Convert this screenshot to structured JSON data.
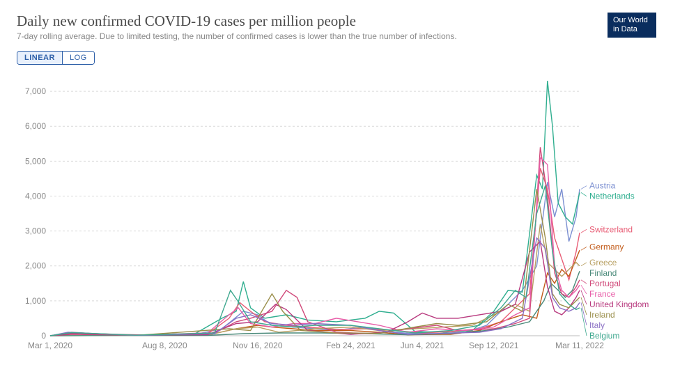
{
  "title": "Daily new confirmed COVID-19 cases per million people",
  "subtitle": "7-day rolling average. Due to limited testing, the number of confirmed cases is lower than the true number of infections.",
  "logo_line1": "Our World",
  "logo_line2": "in Data",
  "scale": {
    "linear": "LINEAR",
    "log": "LOG",
    "active": "linear"
  },
  "chart": {
    "type": "line",
    "background_color": "#ffffff",
    "grid_color": "#d9d9d9",
    "axis_label_color": "#888888",
    "xlim": [
      0,
      740
    ],
    "ylim": [
      0,
      7500
    ],
    "yticks": [
      0,
      1000,
      2000,
      3000,
      4000,
      5000,
      6000,
      7000
    ],
    "ytick_labels": [
      "0",
      "1,000",
      "2,000",
      "3,000",
      "4,000",
      "5,000",
      "6,000",
      "7,000"
    ],
    "xticks": [
      0,
      160,
      290,
      420,
      520,
      620,
      740
    ],
    "xtick_labels": [
      "Mar 1, 2020",
      "Aug 8, 2020",
      "Nov 16, 2020",
      "Feb 24, 2021",
      "Jun 4, 2021",
      "Sep 12, 2021",
      "Mar 11, 2022"
    ],
    "line_width": 1.4,
    "font_family": "Arial, sans-serif",
    "label_fontsize": 12,
    "series": [
      {
        "name": "Austria",
        "color": "#7b8fd1",
        "end": 4200,
        "points": [
          [
            0,
            0
          ],
          [
            30,
            60
          ],
          [
            60,
            40
          ],
          [
            120,
            20
          ],
          [
            200,
            30
          ],
          [
            240,
            200
          ],
          [
            270,
            700
          ],
          [
            290,
            600
          ],
          [
            310,
            300
          ],
          [
            340,
            250
          ],
          [
            370,
            200
          ],
          [
            400,
            160
          ],
          [
            440,
            250
          ],
          [
            470,
            120
          ],
          [
            500,
            70
          ],
          [
            540,
            60
          ],
          [
            580,
            100
          ],
          [
            610,
            300
          ],
          [
            640,
            900
          ],
          [
            660,
            1300
          ],
          [
            680,
            2000
          ],
          [
            695,
            4400
          ],
          [
            705,
            3400
          ],
          [
            715,
            4200
          ],
          [
            725,
            2700
          ],
          [
            735,
            3400
          ],
          [
            740,
            4200
          ]
        ]
      },
      {
        "name": "Netherlands",
        "color": "#2fae8f",
        "end": 4100,
        "points": [
          [
            0,
            0
          ],
          [
            30,
            50
          ],
          [
            120,
            10
          ],
          [
            200,
            30
          ],
          [
            240,
            500
          ],
          [
            260,
            700
          ],
          [
            270,
            1550
          ],
          [
            280,
            800
          ],
          [
            300,
            500
          ],
          [
            330,
            600
          ],
          [
            360,
            450
          ],
          [
            400,
            400
          ],
          [
            440,
            500
          ],
          [
            460,
            700
          ],
          [
            480,
            650
          ],
          [
            510,
            120
          ],
          [
            550,
            100
          ],
          [
            590,
            150
          ],
          [
            620,
            700
          ],
          [
            640,
            1300
          ],
          [
            660,
            1250
          ],
          [
            680,
            4600
          ],
          [
            688,
            4200
          ],
          [
            695,
            7300
          ],
          [
            702,
            6000
          ],
          [
            710,
            3800
          ],
          [
            720,
            3400
          ],
          [
            730,
            3200
          ],
          [
            740,
            4100
          ]
        ]
      },
      {
        "name": "Switzerland",
        "color": "#e85d75",
        "end": 2950,
        "points": [
          [
            0,
            0
          ],
          [
            30,
            100
          ],
          [
            60,
            60
          ],
          [
            150,
            10
          ],
          [
            220,
            50
          ],
          [
            250,
            500
          ],
          [
            265,
            950
          ],
          [
            280,
            700
          ],
          [
            300,
            400
          ],
          [
            330,
            300
          ],
          [
            360,
            250
          ],
          [
            400,
            180
          ],
          [
            440,
            200
          ],
          [
            480,
            150
          ],
          [
            520,
            80
          ],
          [
            560,
            120
          ],
          [
            600,
            200
          ],
          [
            630,
            400
          ],
          [
            650,
            800
          ],
          [
            670,
            1200
          ],
          [
            685,
            4800
          ],
          [
            695,
            4200
          ],
          [
            705,
            2800
          ],
          [
            715,
            2200
          ],
          [
            725,
            1600
          ],
          [
            735,
            2400
          ],
          [
            740,
            2950
          ]
        ]
      },
      {
        "name": "Germany",
        "color": "#c25b1a",
        "end": 2450,
        "points": [
          [
            0,
            0
          ],
          [
            30,
            50
          ],
          [
            120,
            10
          ],
          [
            220,
            20
          ],
          [
            260,
            200
          ],
          [
            290,
            300
          ],
          [
            310,
            250
          ],
          [
            340,
            200
          ],
          [
            370,
            150
          ],
          [
            420,
            150
          ],
          [
            460,
            100
          ],
          [
            500,
            30
          ],
          [
            560,
            40
          ],
          [
            600,
            150
          ],
          [
            630,
            400
          ],
          [
            660,
            600
          ],
          [
            680,
            500
          ],
          [
            695,
            1800
          ],
          [
            705,
            1500
          ],
          [
            715,
            1900
          ],
          [
            725,
            1700
          ],
          [
            735,
            2200
          ],
          [
            740,
            2450
          ]
        ]
      },
      {
        "name": "Greece",
        "color": "#b8a062",
        "end": 2000,
        "points": [
          [
            0,
            0
          ],
          [
            100,
            5
          ],
          [
            220,
            15
          ],
          [
            260,
            200
          ],
          [
            290,
            250
          ],
          [
            320,
            100
          ],
          [
            370,
            200
          ],
          [
            420,
            250
          ],
          [
            460,
            150
          ],
          [
            510,
            200
          ],
          [
            550,
            250
          ],
          [
            590,
            300
          ],
          [
            620,
            600
          ],
          [
            650,
            900
          ],
          [
            670,
            700
          ],
          [
            685,
            3200
          ],
          [
            695,
            2100
          ],
          [
            705,
            1900
          ],
          [
            715,
            1700
          ],
          [
            725,
            1900
          ],
          [
            735,
            2100
          ],
          [
            740,
            2000
          ]
        ]
      },
      {
        "name": "Finland",
        "color": "#4a8a7a",
        "end": 1850,
        "points": [
          [
            0,
            0
          ],
          [
            100,
            8
          ],
          [
            220,
            10
          ],
          [
            270,
            60
          ],
          [
            320,
            80
          ],
          [
            380,
            80
          ],
          [
            440,
            60
          ],
          [
            500,
            30
          ],
          [
            560,
            60
          ],
          [
            610,
            150
          ],
          [
            640,
            250
          ],
          [
            670,
            400
          ],
          [
            690,
            1000
          ],
          [
            700,
            1500
          ],
          [
            710,
            1300
          ],
          [
            720,
            1100
          ],
          [
            730,
            1300
          ],
          [
            740,
            1850
          ]
        ]
      },
      {
        "name": "Portugal",
        "color": "#d04a7a",
        "end": 1600,
        "points": [
          [
            0,
            0
          ],
          [
            30,
            40
          ],
          [
            120,
            15
          ],
          [
            230,
            80
          ],
          [
            260,
            400
          ],
          [
            280,
            500
          ],
          [
            310,
            700
          ],
          [
            330,
            1300
          ],
          [
            345,
            1100
          ],
          [
            360,
            400
          ],
          [
            400,
            100
          ],
          [
            450,
            60
          ],
          [
            500,
            200
          ],
          [
            540,
            300
          ],
          [
            570,
            150
          ],
          [
            620,
            200
          ],
          [
            650,
            350
          ],
          [
            670,
            500
          ],
          [
            685,
            5400
          ],
          [
            695,
            4000
          ],
          [
            705,
            1800
          ],
          [
            715,
            1200
          ],
          [
            725,
            1100
          ],
          [
            735,
            1400
          ],
          [
            740,
            1600
          ]
        ]
      },
      {
        "name": "France",
        "color": "#e85da8",
        "end": 1450,
        "points": [
          [
            0,
            0
          ],
          [
            30,
            70
          ],
          [
            120,
            15
          ],
          [
            220,
            80
          ],
          [
            250,
            600
          ],
          [
            263,
            800
          ],
          [
            280,
            350
          ],
          [
            310,
            250
          ],
          [
            340,
            350
          ],
          [
            370,
            350
          ],
          [
            400,
            500
          ],
          [
            430,
            400
          ],
          [
            460,
            300
          ],
          [
            500,
            100
          ],
          [
            540,
            200
          ],
          [
            580,
            150
          ],
          [
            620,
            250
          ],
          [
            650,
            600
          ],
          [
            670,
            800
          ],
          [
            685,
            5100
          ],
          [
            695,
            4900
          ],
          [
            705,
            2000
          ],
          [
            715,
            1300
          ],
          [
            725,
            1100
          ],
          [
            735,
            1300
          ],
          [
            740,
            1450
          ]
        ]
      },
      {
        "name": "United Kingdom",
        "color": "#b8397e",
        "end": 1300,
        "points": [
          [
            0,
            0
          ],
          [
            30,
            60
          ],
          [
            120,
            20
          ],
          [
            220,
            30
          ],
          [
            260,
            350
          ],
          [
            290,
            400
          ],
          [
            315,
            900
          ],
          [
            330,
            750
          ],
          [
            360,
            150
          ],
          [
            420,
            40
          ],
          [
            470,
            100
          ],
          [
            500,
            400
          ],
          [
            520,
            650
          ],
          [
            540,
            500
          ],
          [
            570,
            500
          ],
          [
            600,
            600
          ],
          [
            630,
            700
          ],
          [
            650,
            900
          ],
          [
            670,
            2400
          ],
          [
            685,
            2700
          ],
          [
            695,
            1400
          ],
          [
            705,
            700
          ],
          [
            715,
            600
          ],
          [
            725,
            800
          ],
          [
            735,
            1100
          ],
          [
            740,
            1300
          ]
        ]
      },
      {
        "name": "Ireland",
        "color": "#9a8e4a",
        "end": 1100,
        "points": [
          [
            0,
            0
          ],
          [
            30,
            90
          ],
          [
            120,
            10
          ],
          [
            250,
            200
          ],
          [
            280,
            150
          ],
          [
            310,
            1200
          ],
          [
            325,
            700
          ],
          [
            350,
            150
          ],
          [
            400,
            80
          ],
          [
            460,
            70
          ],
          [
            510,
            250
          ],
          [
            540,
            350
          ],
          [
            570,
            300
          ],
          [
            610,
            400
          ],
          [
            640,
            900
          ],
          [
            660,
            700
          ],
          [
            680,
            4200
          ],
          [
            692,
            2800
          ],
          [
            702,
            1200
          ],
          [
            712,
            900
          ],
          [
            725,
            800
          ],
          [
            735,
            1000
          ],
          [
            740,
            1100
          ]
        ]
      },
      {
        "name": "Italy",
        "color": "#8a6fc4",
        "end": 950,
        "points": [
          [
            0,
            0
          ],
          [
            25,
            100
          ],
          [
            45,
            80
          ],
          [
            120,
            10
          ],
          [
            230,
            60
          ],
          [
            260,
            500
          ],
          [
            280,
            600
          ],
          [
            310,
            350
          ],
          [
            340,
            300
          ],
          [
            370,
            350
          ],
          [
            420,
            300
          ],
          [
            460,
            150
          ],
          [
            500,
            40
          ],
          [
            550,
            70
          ],
          [
            600,
            100
          ],
          [
            630,
            200
          ],
          [
            660,
            500
          ],
          [
            680,
            2800
          ],
          [
            692,
            2500
          ],
          [
            702,
            1100
          ],
          [
            712,
            800
          ],
          [
            725,
            700
          ],
          [
            735,
            800
          ],
          [
            740,
            950
          ]
        ]
      },
      {
        "name": "Belgium",
        "color": "#3fa88f",
        "end": 800,
        "points": [
          [
            0,
            0
          ],
          [
            30,
            90
          ],
          [
            120,
            15
          ],
          [
            230,
            80
          ],
          [
            252,
            1300
          ],
          [
            262,
            1000
          ],
          [
            280,
            400
          ],
          [
            310,
            300
          ],
          [
            340,
            250
          ],
          [
            370,
            300
          ],
          [
            420,
            300
          ],
          [
            460,
            200
          ],
          [
            510,
            80
          ],
          [
            560,
            150
          ],
          [
            600,
            300
          ],
          [
            630,
            800
          ],
          [
            650,
            1300
          ],
          [
            665,
            1100
          ],
          [
            680,
            3500
          ],
          [
            692,
            4300
          ],
          [
            702,
            2400
          ],
          [
            712,
            1200
          ],
          [
            725,
            900
          ],
          [
            735,
            750
          ],
          [
            740,
            800
          ]
        ]
      }
    ]
  }
}
